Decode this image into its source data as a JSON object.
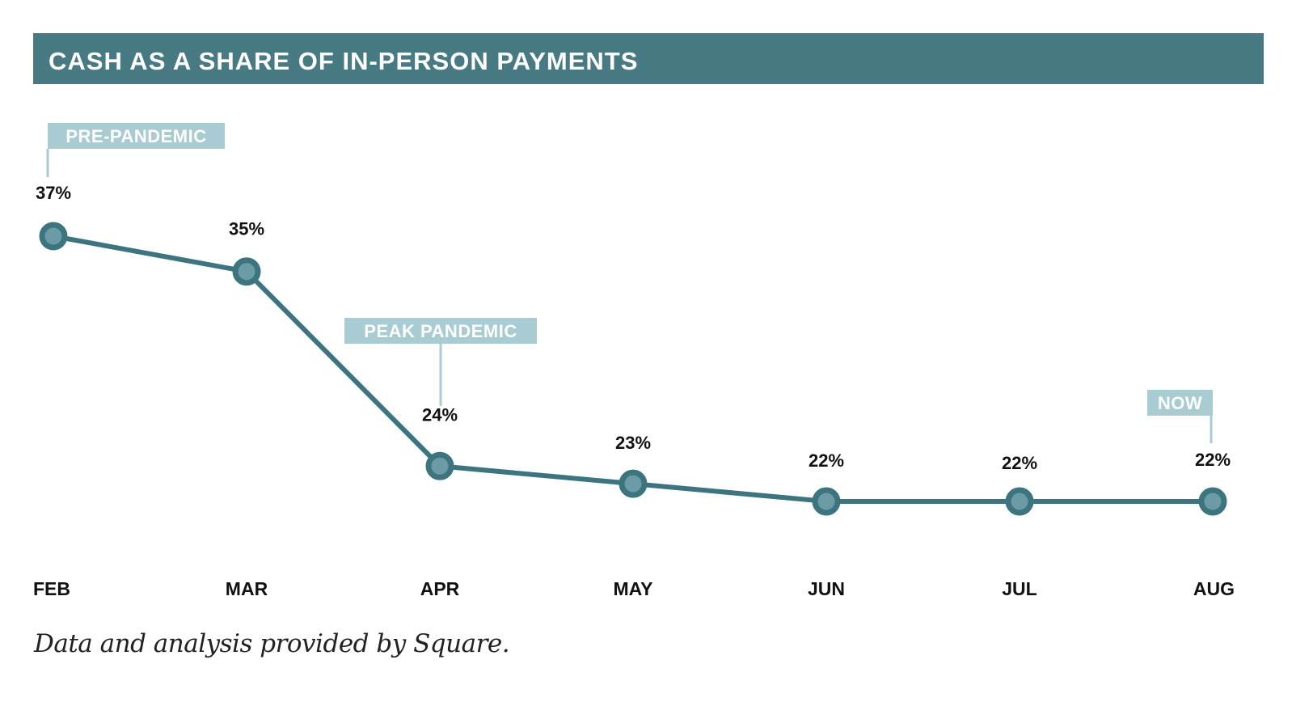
{
  "colors": {
    "header_bg": "#487a84",
    "line": "#3c7480",
    "marker_fill": "#6b9ba4",
    "annotation_bg": "#a9ccd2",
    "text": "#111111"
  },
  "footer": {
    "caption": "Data and analysis provided by Square."
  },
  "chart_data": {
    "type": "line",
    "title": "CASH AS A SHARE OF IN-PERSON PAYMENTS",
    "categories": [
      "FEB",
      "MAR",
      "APR",
      "MAY",
      "JUN",
      "JUL",
      "AUG"
    ],
    "values": [
      37,
      35,
      24,
      23,
      22,
      22,
      22
    ],
    "data_labels": [
      "37%",
      "35%",
      "24%",
      "23%",
      "22%",
      "22%",
      "22%"
    ],
    "annotations": [
      {
        "text": "PRE-PANDEMIC",
        "category": "FEB"
      },
      {
        "text": "PEAK PANDEMIC",
        "category": "APR"
      },
      {
        "text": "NOW",
        "category": "AUG"
      }
    ],
    "ylim": [
      15,
      40
    ],
    "grid": false,
    "legend": "none"
  }
}
